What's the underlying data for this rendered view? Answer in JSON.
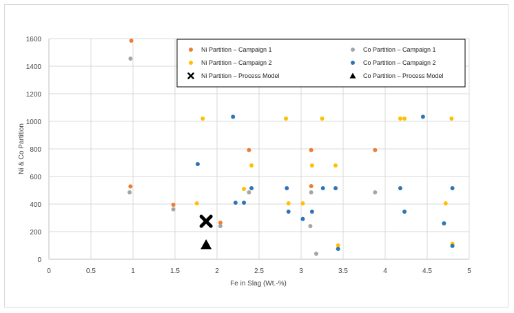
{
  "chart_data": {
    "type": "scatter",
    "xlabel": "Fe in Slag (Wt.-%)",
    "ylabel": "Ni & Co Partition",
    "xlim": [
      0,
      5
    ],
    "ylim": [
      0,
      1600
    ],
    "x_ticks": [
      "0",
      "0.5",
      "1",
      "1.5",
      "2",
      "2.5",
      "3",
      "3.5",
      "4",
      "4.5",
      "5"
    ],
    "y_ticks": [
      "0",
      "200",
      "400",
      "600",
      "800",
      "1000",
      "1200",
      "1400",
      "1600"
    ],
    "grid": true,
    "legend_position": "top-right",
    "series": [
      {
        "name": "Ni Partition – Campaign 1",
        "marker": "circle",
        "color": "#ED7D31",
        "points": [
          [
            0.98,
            1585
          ],
          [
            0.97,
            528
          ],
          [
            1.48,
            395
          ],
          [
            2.04,
            265
          ],
          [
            2.38,
            792
          ],
          [
            3.12,
            792
          ],
          [
            3.12,
            530
          ],
          [
            3.88,
            792
          ]
        ]
      },
      {
        "name": "Co Partition – Campaign 1",
        "marker": "circle",
        "color": "#A5A5A5",
        "points": [
          [
            0.97,
            1455
          ],
          [
            0.96,
            485
          ],
          [
            1.48,
            362
          ],
          [
            2.04,
            240
          ],
          [
            2.38,
            485
          ],
          [
            3.12,
            485
          ],
          [
            3.11,
            240
          ],
          [
            3.18,
            40
          ],
          [
            3.88,
            485
          ]
        ]
      },
      {
        "name": "Ni Partition – Campaign 2",
        "marker": "circle",
        "color": "#FFC000",
        "points": [
          [
            1.83,
            1020
          ],
          [
            2.82,
            1020
          ],
          [
            3.25,
            1020
          ],
          [
            4.18,
            1020
          ],
          [
            4.23,
            1020
          ],
          [
            4.79,
            1020
          ],
          [
            2.41,
            680
          ],
          [
            3.13,
            680
          ],
          [
            3.41,
            680
          ],
          [
            2.32,
            510
          ],
          [
            1.76,
            405
          ],
          [
            2.85,
            405
          ],
          [
            3.02,
            405
          ],
          [
            4.72,
            405
          ],
          [
            3.44,
            100
          ],
          [
            4.8,
            112
          ]
        ]
      },
      {
        "name": "Co Partition – Campaign 2",
        "marker": "circle",
        "color": "#2E75B6",
        "points": [
          [
            2.19,
            1033
          ],
          [
            4.45,
            1033
          ],
          [
            1.77,
            690
          ],
          [
            2.41,
            515
          ],
          [
            2.83,
            515
          ],
          [
            3.26,
            515
          ],
          [
            3.41,
            515
          ],
          [
            4.18,
            515
          ],
          [
            4.8,
            515
          ],
          [
            2.22,
            410
          ],
          [
            2.32,
            410
          ],
          [
            2.85,
            345
          ],
          [
            3.13,
            345
          ],
          [
            4.23,
            345
          ],
          [
            3.02,
            292
          ],
          [
            4.7,
            260
          ],
          [
            3.44,
            75
          ],
          [
            4.8,
            96
          ]
        ]
      },
      {
        "name": "Ni Partition – Process Model",
        "marker": "x",
        "color": "#000000",
        "points": [
          [
            1.87,
            275
          ]
        ]
      },
      {
        "name": "Co Partition – Process Model",
        "marker": "triangle",
        "color": "#000000",
        "points": [
          [
            1.87,
            105
          ]
        ]
      }
    ]
  }
}
